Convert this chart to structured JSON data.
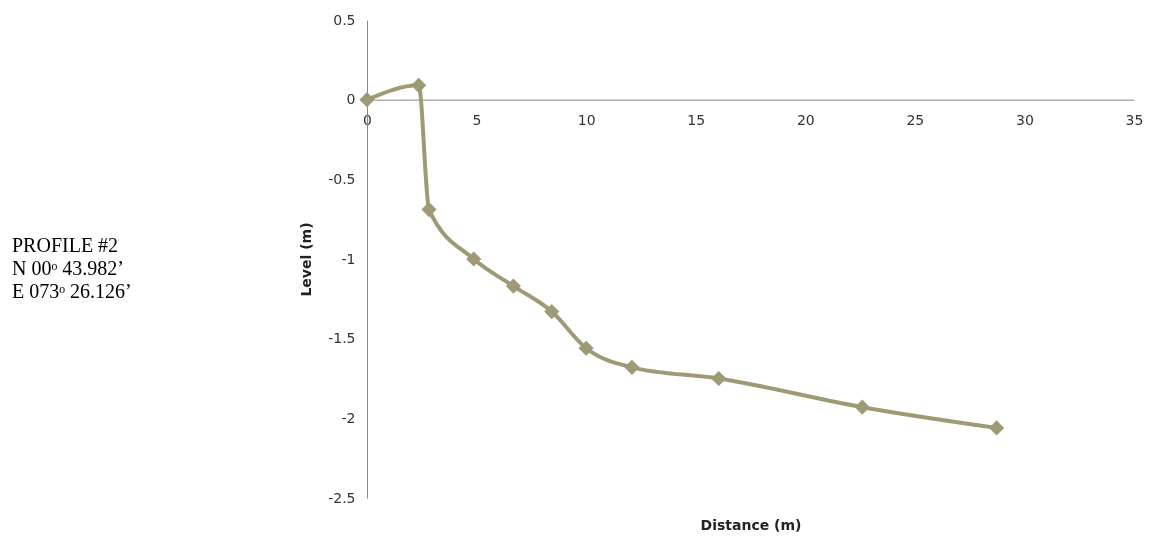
{
  "chart_data": {
    "type": "line",
    "xlabel": "Distance (m)",
    "ylabel": "Level (m)",
    "x": [
      0,
      2.36,
      2.83,
      4.87,
      6.68,
      8.43,
      10.0,
      12.09,
      16.05,
      22.6,
      28.73
    ],
    "series": [
      {
        "color": "#9e9a75",
        "values": [
          0,
          0.09,
          -0.69,
          -1.0,
          -1.17,
          -1.33,
          -1.56,
          -1.68,
          -1.75,
          -1.93,
          -2.06
        ]
      }
    ],
    "xlim": [
      0,
      35
    ],
    "ylim": [
      -2.5,
      0.5
    ],
    "xticks": [
      0,
      5,
      10,
      15,
      20,
      25,
      30,
      35
    ],
    "yticks": [
      -2.5,
      -2,
      -1.5,
      -1,
      -0.5,
      0,
      0.5
    ],
    "marker": "diamond",
    "annotations": [
      "PROFILE #2",
      "N 00ᵒ 43.982’",
      "E 073ᵒ 26.126’"
    ]
  }
}
